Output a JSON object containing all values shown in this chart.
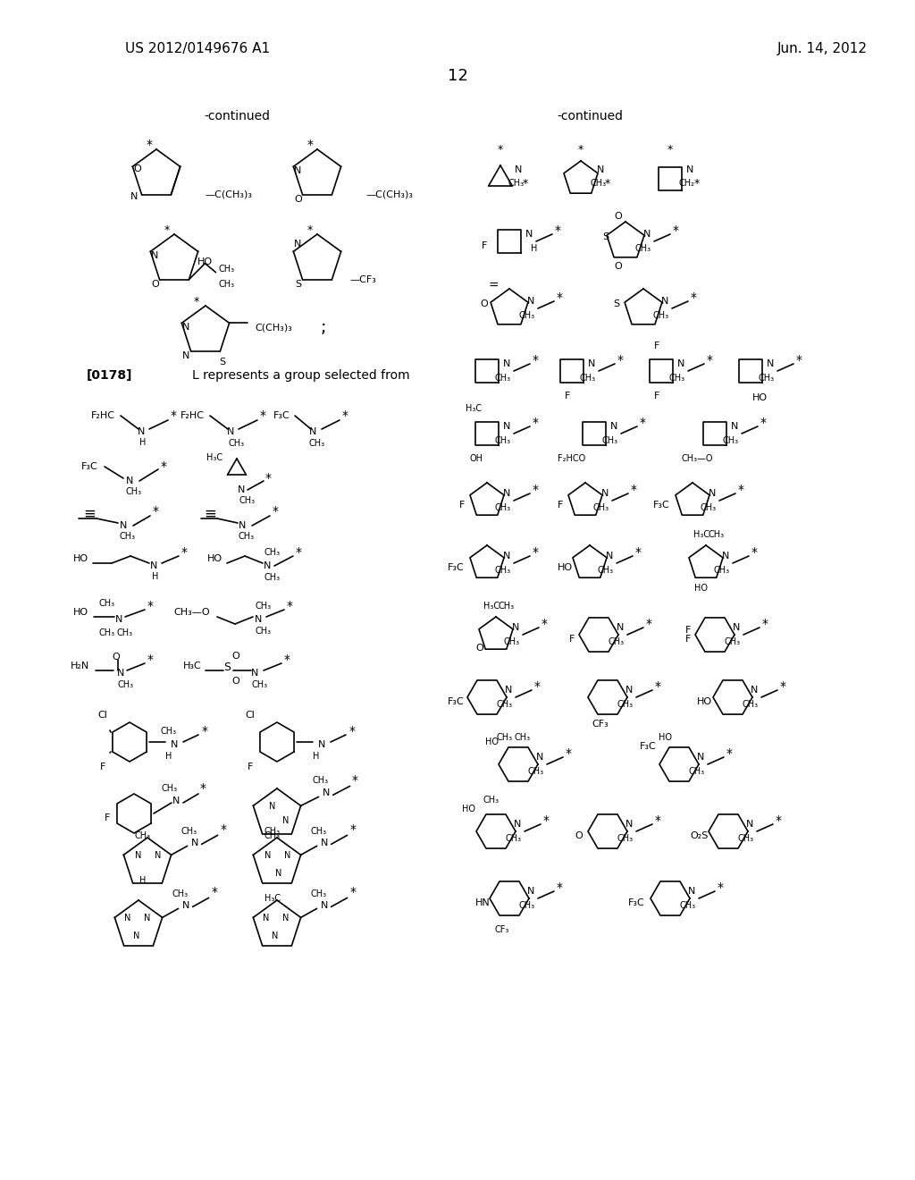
{
  "background_color": "#ffffff",
  "page_number": "12",
  "patent_number": "US 2012/0149676 A1",
  "date": "Jun. 14, 2012",
  "title_left": "-continued",
  "title_right": "-continued",
  "paragraph_label": "[0178]",
  "paragraph_text": "L represents a group selected from"
}
